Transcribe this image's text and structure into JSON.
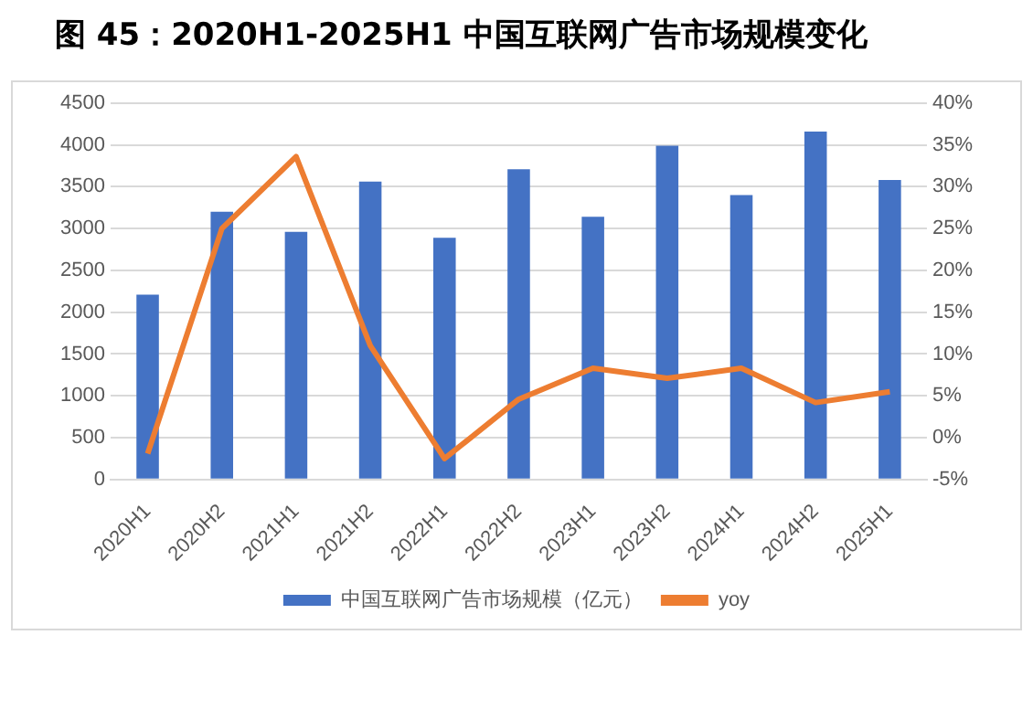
{
  "chart_data": {
    "type": "bar",
    "title": "图 45：2020H1-2025H1 中国互联网广告市场规模变化",
    "categories": [
      "2020H1",
      "2020H2",
      "2021H1",
      "2021H2",
      "2022H1",
      "2022H2",
      "2023H1",
      "2023H2",
      "2024H1",
      "2024H2",
      "2025H1"
    ],
    "series": [
      {
        "name": "中国互联网广告市场规模（亿元）",
        "color": "#4472c4",
        "values": [
          2210,
          3200,
          2960,
          3560,
          2890,
          3710,
          3140,
          3990,
          3400,
          4160,
          3580
        ]
      },
      {
        "name": "yoy",
        "type": "line",
        "axis": "y2",
        "color": "#ed7d31",
        "values": [
          -1.9,
          25,
          33.6,
          11,
          -2.5,
          4.6,
          8.3,
          7.1,
          8.3,
          4.2,
          5.5
        ]
      }
    ],
    "ylim": [
      0,
      4500
    ],
    "yticks": [
      0,
      500,
      1000,
      1500,
      2000,
      2500,
      3000,
      3500,
      4000,
      4500
    ],
    "y2lim": [
      -5,
      40
    ],
    "y2ticks": [
      {
        "value": -5,
        "label": "-5%"
      },
      {
        "value": 0,
        "label": "0%"
      },
      {
        "value": 5,
        "label": "5%"
      },
      {
        "value": 10,
        "label": "10%"
      },
      {
        "value": 15,
        "label": "15%"
      },
      {
        "value": 20,
        "label": "20%"
      },
      {
        "value": 25,
        "label": "25%"
      },
      {
        "value": 30,
        "label": "30%"
      },
      {
        "value": 35,
        "label": "35%"
      },
      {
        "value": 40,
        "label": "40%"
      }
    ],
    "grid": "y",
    "legend": "bottom",
    "marker": "none",
    "line_style": "solid"
  }
}
